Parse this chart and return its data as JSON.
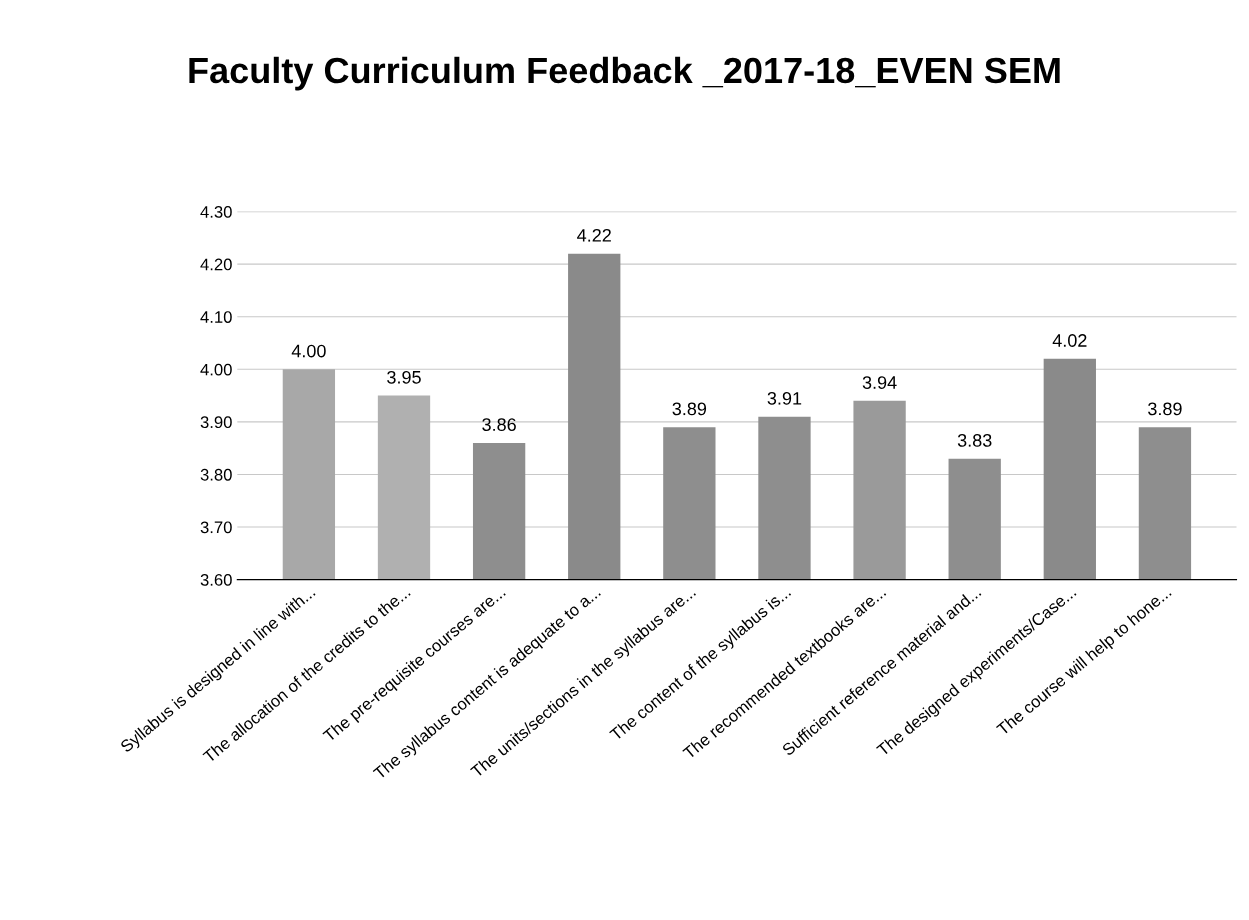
{
  "chart_data": {
    "type": "bar",
    "title": "Faculty Curriculum Feedback _2017-18_EVEN SEM",
    "categories": [
      "Syllabus is designed in line with...",
      "The allocation of the credits to the...",
      "The pre-requisite courses are...",
      "The syllabus content is adequate to a...",
      "The units/sections in the syllabus are...",
      "The content of the syllabus is...",
      "The recommended textbooks are...",
      "Sufficient reference material and...",
      "The designed experiments/Case...",
      "The course will help to hone..."
    ],
    "values": [
      4.0,
      3.95,
      3.86,
      4.22,
      3.89,
      3.91,
      3.94,
      3.83,
      4.02,
      3.89
    ],
    "value_labels": [
      "4.00",
      "3.95",
      "3.86",
      "4.22",
      "3.89",
      "3.91",
      "3.94",
      "3.83",
      "4.02",
      "3.89"
    ],
    "colors": [
      "#a8a8a8",
      "#b0b0b0",
      "#8e8e8e",
      "#8a8a8a",
      "#8e8e8e",
      "#8e8e8e",
      "#9a9a9a",
      "#8e8e8e",
      "#8a8a8a",
      "#8e8e8e"
    ],
    "ylim": [
      3.6,
      4.3
    ],
    "yticks": [
      {
        "value": 3.6,
        "label": "3.60"
      },
      {
        "value": 3.7,
        "label": "3.70"
      },
      {
        "value": 3.8,
        "label": "3.80"
      },
      {
        "value": 3.9,
        "label": "3.90"
      },
      {
        "value": 4.0,
        "label": "4.00"
      },
      {
        "value": 4.1,
        "label": "4.10"
      },
      {
        "value": 4.2,
        "label": "4.20"
      },
      {
        "value": 4.3,
        "label": "4.30"
      }
    ],
    "grid": "y",
    "legend": false
  }
}
